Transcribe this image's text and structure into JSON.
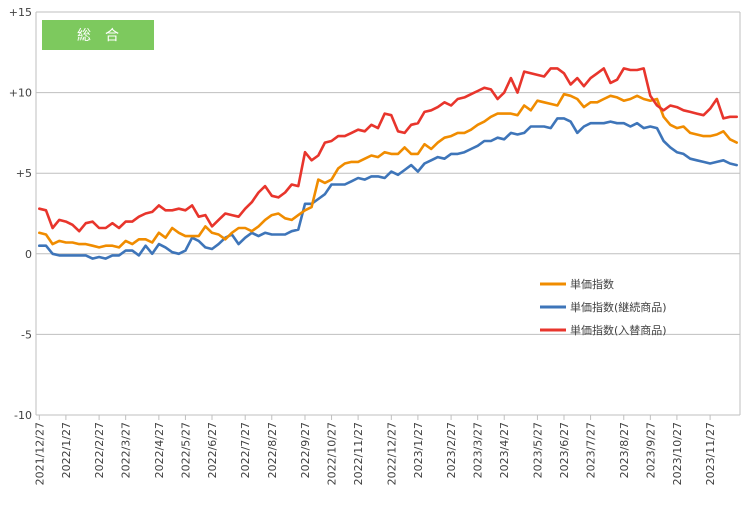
{
  "chart_data": {
    "type": "line",
    "title": "総　合",
    "title_box_color": "#7DC95E",
    "ylim": [
      -10,
      15
    ],
    "yticks": [
      {
        "value": 15,
        "label": "+15"
      },
      {
        "value": 10,
        "label": "+10"
      },
      {
        "value": 5,
        "label": "+5"
      },
      {
        "value": 0,
        "label": "0"
      },
      {
        "value": -5,
        "label": "-5"
      },
      {
        "value": -10,
        "label": "-10"
      }
    ],
    "grid": true,
    "legend_position": "right",
    "x_ticks": [
      {
        "index": 0,
        "label": "2021/12/27"
      },
      {
        "index": 4,
        "label": "2022/1/27"
      },
      {
        "index": 9,
        "label": "2022/2/27"
      },
      {
        "index": 13,
        "label": "2022/3/27"
      },
      {
        "index": 18,
        "label": "2022/4/27"
      },
      {
        "index": 22,
        "label": "2022/5/27"
      },
      {
        "index": 26,
        "label": "2022/6/27"
      },
      {
        "index": 31,
        "label": "2022/7/27"
      },
      {
        "index": 35,
        "label": "2022/8/27"
      },
      {
        "index": 40,
        "label": "2022/9/27"
      },
      {
        "index": 44,
        "label": "2022/10/27"
      },
      {
        "index": 48,
        "label": "2022/11/27"
      },
      {
        "index": 53,
        "label": "2022/12/27"
      },
      {
        "index": 57,
        "label": "2023/1/27"
      },
      {
        "index": 62,
        "label": "2023/2/27"
      },
      {
        "index": 66,
        "label": "2023/3/27"
      },
      {
        "index": 70,
        "label": "2023/4/27"
      },
      {
        "index": 75,
        "label": "2023/5/27"
      },
      {
        "index": 79,
        "label": "2023/6/27"
      },
      {
        "index": 83,
        "label": "2023/7/27"
      },
      {
        "index": 88,
        "label": "2023/8/27"
      },
      {
        "index": 92,
        "label": "2023/9/27"
      },
      {
        "index": 96,
        "label": "2023/10/27"
      },
      {
        "index": 101,
        "label": "2023/11/27"
      }
    ],
    "series": [
      {
        "name": "単価指数",
        "color": "#F08C00",
        "values": [
          1.3,
          1.2,
          0.6,
          0.8,
          0.7,
          0.7,
          0.6,
          0.6,
          0.5,
          0.4,
          0.5,
          0.5,
          0.4,
          0.8,
          0.6,
          0.9,
          0.9,
          0.7,
          1.3,
          1.0,
          1.6,
          1.3,
          1.1,
          1.1,
          1.1,
          1.7,
          1.3,
          1.2,
          0.9,
          1.3,
          1.6,
          1.6,
          1.4,
          1.7,
          2.1,
          2.4,
          2.5,
          2.2,
          2.1,
          2.4,
          2.7,
          2.9,
          4.6,
          4.4,
          4.6,
          5.3,
          5.6,
          5.7,
          5.7,
          5.9,
          6.1,
          6.0,
          6.3,
          6.2,
          6.2,
          6.6,
          6.2,
          6.2,
          6.8,
          6.5,
          6.9,
          7.2,
          7.3,
          7.5,
          7.5,
          7.7,
          8.0,
          8.2,
          8.5,
          8.7,
          8.7,
          8.7,
          8.6,
          9.2,
          8.9,
          9.5,
          9.4,
          9.3,
          9.2,
          9.9,
          9.8,
          9.6,
          9.1,
          9.4,
          9.4,
          9.6,
          9.8,
          9.7,
          9.5,
          9.6,
          9.8,
          9.6,
          9.5,
          9.6,
          8.5,
          8.0,
          7.8,
          7.9,
          7.5,
          7.4,
          7.3,
          7.3,
          7.4,
          7.6,
          7.1,
          6.9
        ]
      },
      {
        "name": "単価指数(継続商品)",
        "color": "#3E75B9",
        "values": [
          0.5,
          0.5,
          0.0,
          -0.1,
          -0.1,
          -0.1,
          -0.1,
          -0.1,
          -0.3,
          -0.2,
          -0.3,
          -0.1,
          -0.1,
          0.2,
          0.2,
          -0.1,
          0.5,
          0.0,
          0.6,
          0.4,
          0.1,
          0.0,
          0.2,
          1.0,
          0.8,
          0.4,
          0.3,
          0.6,
          1.0,
          1.2,
          0.6,
          1.0,
          1.3,
          1.1,
          1.3,
          1.2,
          1.2,
          1.2,
          1.4,
          1.5,
          3.1,
          3.1,
          3.4,
          3.7,
          4.3,
          4.3,
          4.3,
          4.5,
          4.7,
          4.6,
          4.8,
          4.8,
          4.7,
          5.1,
          4.9,
          5.2,
          5.5,
          5.1,
          5.6,
          5.8,
          6.0,
          5.9,
          6.2,
          6.2,
          6.3,
          6.5,
          6.7,
          7.0,
          7.0,
          7.2,
          7.1,
          7.5,
          7.4,
          7.5,
          7.9,
          7.9,
          7.9,
          7.8,
          8.4,
          8.4,
          8.2,
          7.5,
          7.9,
          8.1,
          8.1,
          8.1,
          8.2,
          8.1,
          8.1,
          7.9,
          8.1,
          7.8,
          7.9,
          7.8,
          7.0,
          6.6,
          6.3,
          6.2,
          5.9,
          5.8,
          5.7,
          5.6,
          5.7,
          5.8,
          5.6,
          5.5
        ]
      },
      {
        "name": "単価指数(入替商品)",
        "color": "#E8352C",
        "values": [
          2.8,
          2.7,
          1.6,
          2.1,
          2.0,
          1.8,
          1.4,
          1.9,
          2.0,
          1.6,
          1.6,
          1.9,
          1.6,
          2.0,
          2.0,
          2.3,
          2.5,
          2.6,
          3.0,
          2.7,
          2.7,
          2.8,
          2.7,
          3.0,
          2.3,
          2.4,
          1.7,
          2.1,
          2.5,
          2.4,
          2.3,
          2.8,
          3.2,
          3.8,
          4.2,
          3.6,
          3.5,
          3.8,
          4.3,
          4.2,
          6.3,
          5.8,
          6.1,
          6.9,
          7.0,
          7.3,
          7.3,
          7.5,
          7.7,
          7.6,
          8.0,
          7.8,
          8.7,
          8.6,
          7.6,
          7.5,
          8.0,
          8.1,
          8.8,
          8.9,
          9.1,
          9.4,
          9.2,
          9.6,
          9.7,
          9.9,
          10.1,
          10.3,
          10.2,
          9.6,
          10.0,
          10.9,
          10.0,
          11.3,
          11.2,
          11.1,
          11.0,
          11.5,
          11.5,
          11.2,
          10.5,
          10.9,
          10.4,
          10.9,
          11.2,
          11.5,
          10.6,
          10.8,
          11.5,
          11.4,
          11.4,
          11.5,
          9.8,
          9.2,
          8.9,
          9.2,
          9.1,
          8.9,
          8.8,
          8.7,
          8.6,
          9.0,
          9.6,
          8.4,
          8.5,
          8.5
        ]
      }
    ]
  }
}
